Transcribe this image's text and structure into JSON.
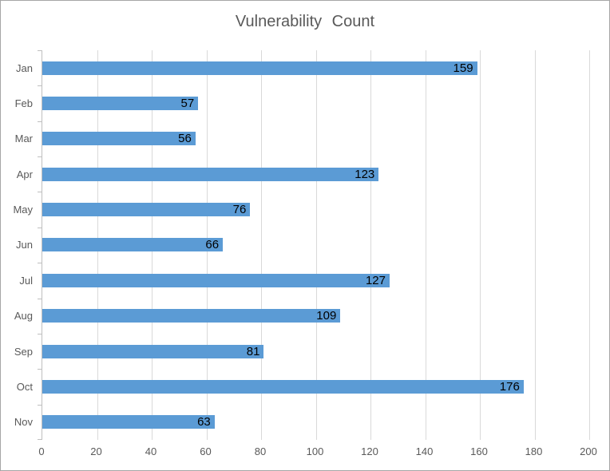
{
  "chart_data": {
    "type": "bar",
    "orientation": "horizontal",
    "title": "Vulnerability Count",
    "categories": [
      "Jan",
      "Feb",
      "Mar",
      "Apr",
      "May",
      "Jun",
      "Jul",
      "Aug",
      "Sep",
      "Oct",
      "Nov"
    ],
    "values": [
      159,
      57,
      56,
      123,
      76,
      66,
      127,
      109,
      81,
      176,
      63
    ],
    "xlabel": "",
    "ylabel": "",
    "x_axis": {
      "min": 0,
      "max": 200,
      "ticks": [
        0,
        20,
        40,
        60,
        80,
        100,
        120,
        140,
        160,
        180,
        200
      ]
    },
    "grid": "vertical-major",
    "legend": "none",
    "data_labels": "inside-end",
    "colors": {
      "bar": "#5B9BD5",
      "gridline": "#D9D9D9",
      "axis_line": "#BFBFBF",
      "axis_text": "#595959",
      "data_label": "#000000",
      "title_text": "#595959",
      "chart_border": "#A6A6A6",
      "background": "#FFFFFF"
    }
  }
}
